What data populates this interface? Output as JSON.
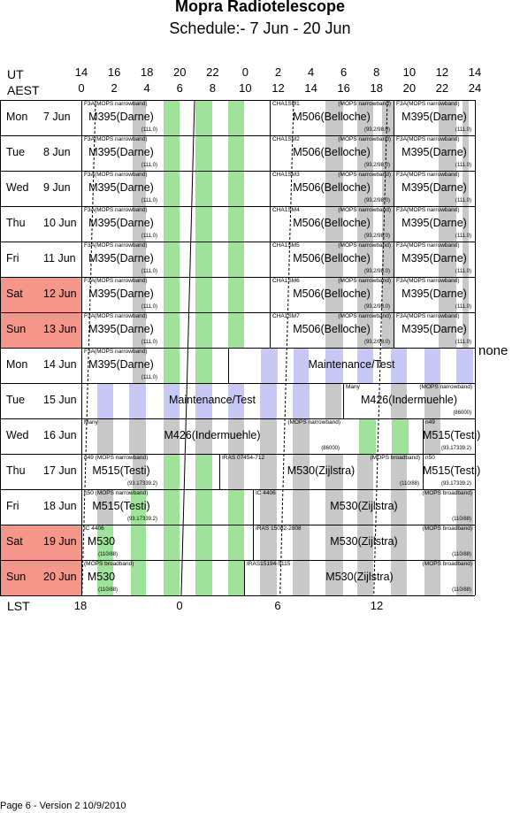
{
  "header": {
    "title": "Mopra Radiotelescope",
    "subtitle": "Schedule:- 7  Jun - 20 Jun"
  },
  "axes": {
    "ut_label": "UT",
    "aest_label": "AEST",
    "lst_label": "LST",
    "ut_ticks": [
      "14",
      "16",
      "18",
      "20",
      "22",
      "0",
      "2",
      "4",
      "6",
      "8",
      "10",
      "12",
      "14"
    ],
    "aest_ticks": [
      "0",
      "2",
      "4",
      "6",
      "8",
      "10",
      "12",
      "14",
      "16",
      "18",
      "20",
      "22",
      "24"
    ],
    "lst_ticks": [
      "18",
      "0",
      "6",
      "12"
    ]
  },
  "days": [
    {
      "name": "Mon",
      "date": "7  Jun",
      "weekend": false
    },
    {
      "name": "Tue",
      "date": "8  Jun",
      "weekend": false
    },
    {
      "name": "Wed",
      "date": "9  Jun",
      "weekend": false
    },
    {
      "name": "Thu",
      "date": "10 Jun",
      "weekend": false
    },
    {
      "name": "Fri",
      "date": "11 Jun",
      "weekend": false
    },
    {
      "name": "Sat",
      "date": "12 Jun",
      "weekend": true
    },
    {
      "name": "Sun",
      "date": "13 Jun",
      "weekend": true
    },
    {
      "name": "Mon",
      "date": "14 Jun",
      "weekend": false
    },
    {
      "name": "Tue",
      "date": "15 Jun",
      "weekend": false
    },
    {
      "name": "Wed",
      "date": "16 Jun",
      "weekend": false
    },
    {
      "name": "Thu",
      "date": "17 Jun",
      "weekend": false
    },
    {
      "name": "Fri",
      "date": "18 Jun",
      "weekend": false
    },
    {
      "name": "Sat",
      "date": "19 Jun",
      "weekend": true
    },
    {
      "name": "Sun",
      "date": "20 Jun",
      "weekend": true
    }
  ],
  "rows": [
    [
      {
        "top": "F3A(MOPS narrowband)",
        "main": "M395(Darne)",
        "foot": "(111.0)"
      },
      {
        "top": "CHA1SM1",
        "top_right": "(MOPS narrowband)",
        "main": "M506(Belloche)",
        "foot": "(93.2/98.0)"
      },
      {
        "top": "F3A(MOPS narrowband)",
        "main": "M395(Darne)",
        "foot": "(111.0)"
      }
    ],
    [
      {
        "top": "F3A(MOPS narrowband)",
        "main": "M395(Darne)",
        "foot": "(111.0)"
      },
      {
        "top": "CHA1SM2",
        "top_right": "(MOPS narrowband)",
        "main": "M506(Belloche)",
        "foot": "(93.2/98.0)"
      },
      {
        "top": "F3A(MOPS narrowband)",
        "main": "M395(Darne)",
        "foot": "(111.0)"
      }
    ],
    [
      {
        "top": "F3A(MOPS narrowband)",
        "main": "M395(Darne)",
        "foot": "(111.0)"
      },
      {
        "top": "CHA1SM3",
        "top_right": "(MOPS narrowband)",
        "main": "M506(Belloche)",
        "foot": "(93.2/98.0)"
      },
      {
        "top": "F3A(MOPS narrowband)",
        "main": "M395(Darne)",
        "foot": "(111.0)"
      }
    ],
    [
      {
        "top": "F3A(MOPS narrowband)",
        "main": "M395(Darne)",
        "foot": "(111.0)"
      },
      {
        "top": "CHA1SM4",
        "top_right": "(MOPS narrowband)",
        "main": "M506(Belloche)",
        "foot": "(93.2/98.0)"
      },
      {
        "top": "F3A(MOPS narrowband)",
        "main": "M395(Darne)",
        "foot": "(111.0)"
      }
    ],
    [
      {
        "top": "F3A(MOPS narrowband)",
        "main": "M395(Darne)",
        "foot": "(111.0)"
      },
      {
        "top": "CHA1SM5",
        "top_right": "(MOPS narrowband)",
        "main": "M506(Belloche)",
        "foot": "(93.2/98.0)"
      },
      {
        "top": "F3A(MOPS narrowband)",
        "main": "M395(Darne)",
        "foot": "(111.0)"
      }
    ],
    [
      {
        "top": "F3A(MOPS narrowband)",
        "main": "M395(Darne)",
        "foot": "(111.0)"
      },
      {
        "top": "CHA1SM6",
        "top_right": "(MOPS narrowband)",
        "main": "M506(Belloche)",
        "foot": "(93.2/98.0)"
      },
      {
        "top": "F3A(MOPS narrowband)",
        "main": "M395(Darne)",
        "foot": "(111.0)"
      }
    ],
    [
      {
        "top": "F3A(MOPS narrowband)",
        "main": "M395(Darne)",
        "foot": "(111.0)"
      },
      {
        "top": "CHA1SM7",
        "top_right": "(MOPS narrowband)",
        "main": "M506(Belloche)",
        "foot": "(93.2/98.0)"
      },
      {
        "top": "F3A(MOPS narrowband)",
        "main": "M395(Darne)",
        "foot": "(111.0)"
      }
    ],
    [
      {
        "top": "F3A(MOPS narrowband)",
        "main": "M395(Darne)",
        "foot": "(111.0)"
      },
      {
        "main": "Maintenance/Test"
      }
    ],
    [
      {
        "main": "Maintenance/Test"
      },
      {
        "top": "Many",
        "top_right": "(MOPS narrowband)",
        "main": "M426(Indermuehle)",
        "foot": "(86000)"
      }
    ],
    [
      {
        "top": "Many",
        "top_right": "(MOPS narrowband)",
        "main": "M426(Indermuehle)",
        "foot": "(86000)"
      },
      {
        "top": "n49",
        "main": "M515(Testi)",
        "foot": "(93.17339.2)"
      }
    ],
    [
      {
        "top": "n49 (MOPS narrowband)",
        "main": "M515(Testi)",
        "foot": "(93.17339.2)"
      },
      {
        "top": "IRAS 07454-712",
        "top_right": "(MOPS broadband)",
        "main": "M530(Zijlstra)",
        "foot": "(110/88)"
      },
      {
        "top": "n50",
        "main": "M515(Testi)",
        "foot": "(93.17339.2)"
      }
    ],
    [
      {
        "top": "n50 (MOPS narrowband)",
        "main": "M515(Testi)",
        "foot": "(93.17339.2)"
      },
      {
        "top": "IC 4406",
        "top_right": "(MOPS broadband)",
        "main": "M530(Zijlstra)",
        "foot": "(110/88)"
      }
    ],
    [
      {
        "top": "IC 4406",
        "main": "M530",
        "foot": "(110/88)"
      },
      {
        "top": "IRAS 15082-2808",
        "top_right": "(MOPS broadband)",
        "main": "M530(Zijlstra)",
        "foot": "(110/88)"
      }
    ],
    [
      {
        "top": "(MOPS broadband)",
        "main": "M530",
        "foot": "(110/88)"
      },
      {
        "top": "IRAS15194-5115",
        "top_right": "(MOPS broadband)",
        "main": "M530(Zijlstra)",
        "foot": "(110/88)"
      }
    ]
  ],
  "side_note": "none",
  "footer": "Page 6 - Version 2  10/9/2010",
  "colors": {
    "green": "#9fe39a",
    "grey": "#c8c8c8",
    "lavender": "#c8c8f5",
    "weekend": "#f5968a"
  }
}
